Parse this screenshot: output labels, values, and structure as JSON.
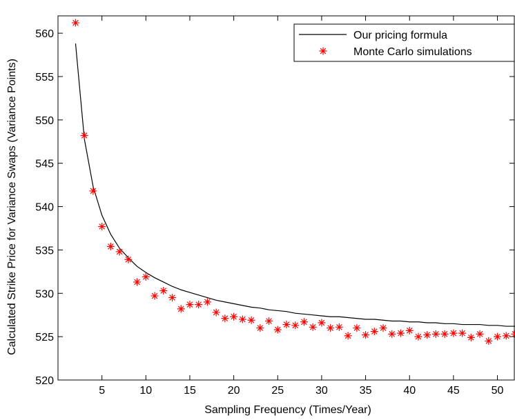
{
  "chart_data": {
    "type": "line",
    "title": "",
    "xlabel": "Sampling Frequency (Times/Year)",
    "ylabel": "Calculated Strike Price for Variance Swaps (Variance Points)",
    "xlim": [
      0,
      52
    ],
    "ylim": [
      520,
      562
    ],
    "x_ticks": [
      5,
      10,
      15,
      20,
      25,
      30,
      35,
      40,
      45,
      50
    ],
    "y_ticks": [
      520,
      525,
      530,
      535,
      540,
      545,
      550,
      555,
      560
    ],
    "grid": false,
    "legend": "top-right",
    "series": [
      {
        "name": "Our pricing formula",
        "kind": "line",
        "color": "#000000",
        "x": [
          2,
          3,
          4,
          5,
          6,
          7,
          8,
          9,
          10,
          11,
          12,
          13,
          14,
          15,
          16,
          17,
          18,
          19,
          20,
          21,
          22,
          23,
          24,
          25,
          26,
          27,
          28,
          29,
          30,
          31,
          32,
          33,
          34,
          35,
          36,
          37,
          38,
          39,
          40,
          41,
          42,
          43,
          44,
          45,
          46,
          47,
          48,
          49,
          50,
          51,
          52
        ],
        "y": [
          558.8,
          547.8,
          542.3,
          539.0,
          536.8,
          535.2,
          534.1,
          533.1,
          532.4,
          531.8,
          531.3,
          530.8,
          530.4,
          530.1,
          529.8,
          529.5,
          529.2,
          529.0,
          528.8,
          528.6,
          528.4,
          528.3,
          528.1,
          528.0,
          527.9,
          527.7,
          527.6,
          527.5,
          527.4,
          527.3,
          527.3,
          527.2,
          527.1,
          527.0,
          527.0,
          526.9,
          526.8,
          526.8,
          526.7,
          526.7,
          526.6,
          526.6,
          526.5,
          526.5,
          526.4,
          526.4,
          526.4,
          526.3,
          526.3,
          526.2,
          526.2
        ]
      },
      {
        "name": "Monte Carlo simulations",
        "kind": "scatter",
        "marker": "*",
        "color": "#ff0000",
        "x": [
          2,
          3,
          4,
          5,
          6,
          7,
          8,
          9,
          10,
          11,
          12,
          13,
          14,
          15,
          16,
          17,
          18,
          19,
          20,
          21,
          22,
          23,
          24,
          25,
          26,
          27,
          28,
          29,
          30,
          31,
          32,
          33,
          34,
          35,
          36,
          37,
          38,
          39,
          40,
          41,
          42,
          43,
          44,
          45,
          46,
          47,
          48,
          49,
          50,
          51,
          52
        ],
        "y": [
          561.2,
          548.2,
          541.8,
          537.7,
          535.4,
          534.8,
          533.9,
          531.3,
          531.9,
          529.7,
          530.3,
          529.5,
          528.2,
          528.7,
          528.7,
          529.0,
          527.8,
          527.1,
          527.3,
          527.0,
          526.9,
          526.0,
          526.8,
          525.8,
          526.4,
          526.3,
          526.7,
          526.1,
          526.6,
          526.0,
          526.1,
          525.1,
          526.0,
          525.2,
          525.6,
          526.0,
          525.3,
          525.4,
          525.7,
          525.0,
          525.2,
          525.3,
          525.3,
          525.4,
          525.4,
          524.9,
          525.3,
          524.5,
          525.0,
          525.1,
          525.3
        ]
      }
    ]
  }
}
